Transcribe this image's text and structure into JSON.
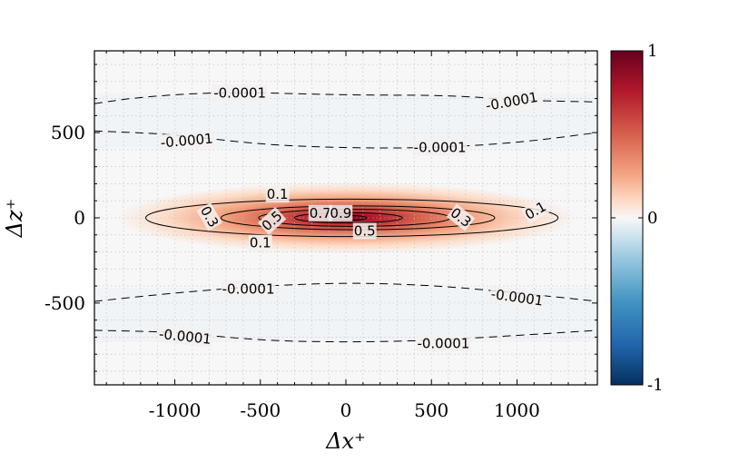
{
  "chart_data": {
    "type": "heatmap",
    "title": "",
    "xlabel": "Δx⁺",
    "ylabel": "Δz⁺",
    "xlim": [
      -1470,
      1470
    ],
    "ylim": [
      -980,
      980
    ],
    "x_ticks": [
      -1000,
      -500,
      0,
      500,
      1000
    ],
    "x_tick_labels": [
      "-1000",
      "-500",
      "0",
      "500",
      "1000"
    ],
    "y_ticks": [
      -500,
      0,
      500
    ],
    "y_tick_labels": [
      "-500",
      "0",
      "500"
    ],
    "grid": true,
    "colormap": "red-white-blue (diverging)",
    "colors": {
      "max": "#67001f",
      "mid": "#f7f7f7",
      "min": "#053061"
    },
    "colorbar": {
      "range": [
        -1,
        1
      ],
      "tick_labels": [
        {
          "value": 1,
          "label": "1"
        },
        {
          "value": 0,
          "label": "0"
        },
        {
          "value": -1,
          "label": "-1"
        }
      ]
    },
    "field": {
      "center": [
        0,
        0
      ],
      "sigma_x": 420,
      "sigma_z": 58,
      "negative_band_z": 570
    },
    "contours": [
      {
        "level": 0.1,
        "style": "solid",
        "x_extent": [
          -1170,
          1240
        ],
        "z_extent": [
          -110,
          110
        ]
      },
      {
        "level": 0.3,
        "style": "solid",
        "x_extent": [
          -730,
          870
        ],
        "z_extent": [
          -70,
          70
        ]
      },
      {
        "level": 0.5,
        "style": "solid",
        "x_extent": [
          -510,
          610
        ],
        "z_extent": [
          -50,
          50
        ]
      },
      {
        "level": 0.7,
        "style": "solid",
        "x_extent": [
          -300,
          330
        ],
        "z_extent": [
          -30,
          30
        ]
      },
      {
        "level": 0.9,
        "style": "solid",
        "x_extent": [
          -90,
          120
        ],
        "z_extent": [
          -14,
          14
        ]
      },
      {
        "level": -0.0001,
        "style": "dashed",
        "lines": [
          [
            [
              -1470,
              670
            ],
            [
              -1200,
              710
            ],
            [
              -700,
              740
            ],
            [
              0,
              720
            ],
            [
              600,
              720
            ],
            [
              1000,
              690
            ],
            [
              1470,
              680
            ]
          ],
          [
            [
              -1470,
              510
            ],
            [
              -1000,
              490
            ],
            [
              -500,
              430
            ],
            [
              0,
              410
            ],
            [
              500,
              410
            ],
            [
              1000,
              440
            ],
            [
              1470,
              500
            ]
          ],
          [
            [
              -1470,
              -490
            ],
            [
              -1000,
              -440
            ],
            [
              -500,
              -400
            ],
            [
              0,
              -380
            ],
            [
              500,
              -395
            ],
            [
              1000,
              -440
            ],
            [
              1470,
              -490
            ]
          ],
          [
            [
              -1470,
              -660
            ],
            [
              -1000,
              -670
            ],
            [
              -500,
              -720
            ],
            [
              0,
              -730
            ],
            [
              500,
              -720
            ],
            [
              1000,
              -690
            ],
            [
              1470,
              -660
            ]
          ]
        ]
      }
    ],
    "annotations": [
      {
        "text": "-0.0001",
        "x": -620,
        "z": 730,
        "angle": 0
      },
      {
        "text": "-0.0001",
        "x": 970,
        "z": 680,
        "angle": 10
      },
      {
        "text": "-0.0001",
        "x": -930,
        "z": 450,
        "angle": 5
      },
      {
        "text": "-0.0001",
        "x": 550,
        "z": 410,
        "angle": 0
      },
      {
        "text": "0.1",
        "x": -400,
        "z": 135,
        "angle": 0
      },
      {
        "text": "0.1",
        "x": 1110,
        "z": 40,
        "angle": 30
      },
      {
        "text": "0.3",
        "x": -800,
        "z": 5,
        "angle": -60
      },
      {
        "text": "0.3",
        "x": 670,
        "z": 0,
        "angle": -38
      },
      {
        "text": "0.5",
        "x": -430,
        "z": -20,
        "angle": 42
      },
      {
        "text": "0.7",
        "x": -150,
        "z": 25,
        "angle": 0
      },
      {
        "text": "0.9",
        "x": -30,
        "z": 25,
        "angle": 0
      },
      {
        "text": "0.1",
        "x": -500,
        "z": -150,
        "angle": 0
      },
      {
        "text": "0.5",
        "x": 110,
        "z": -80,
        "angle": 0
      },
      {
        "text": "-0.0001",
        "x": -570,
        "z": -420,
        "angle": 0
      },
      {
        "text": "-0.0001",
        "x": 1000,
        "z": -470,
        "angle": -8
      },
      {
        "text": "-0.0001",
        "x": -940,
        "z": -700,
        "angle": -6
      },
      {
        "text": "-0.0001",
        "x": 570,
        "z": -740,
        "angle": 0
      }
    ]
  }
}
